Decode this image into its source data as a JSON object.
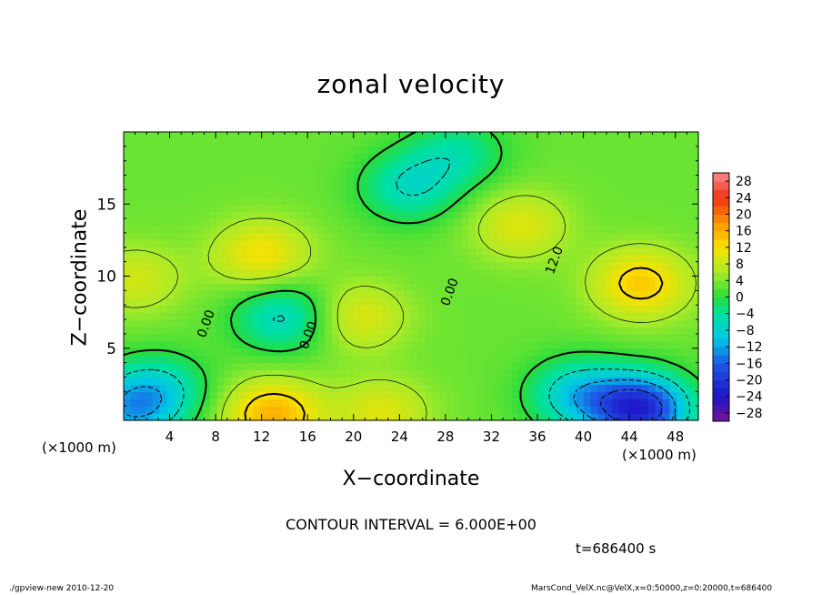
{
  "chart_data": {
    "type": "heatmap",
    "title": "zonal velocity",
    "xlabel": "X−coordinate",
    "ylabel": "Z−coordinate",
    "x_unit_left": "(×1000 m)",
    "x_unit_right": "(×1000 m)",
    "xlim": [
      0,
      50
    ],
    "ylim": [
      0,
      20
    ],
    "xticks": [
      4,
      8,
      12,
      16,
      20,
      24,
      28,
      32,
      36,
      40,
      44,
      48
    ],
    "yticks": [
      5,
      10,
      15
    ],
    "colorbar": {
      "ticks": [
        28,
        24,
        20,
        16,
        12,
        8,
        4,
        0,
        -4,
        -8,
        -12,
        -16,
        -20,
        -24,
        -28
      ],
      "tick_labels": [
        "28",
        "24",
        "20",
        "16",
        "12",
        "8",
        "4",
        "0",
        "−4",
        "−8",
        "−12",
        "−16",
        "−20",
        "−24",
        "−28"
      ],
      "range": [
        -30,
        30
      ]
    },
    "contour_labels": [
      {
        "text": "0.00",
        "x": 7.5,
        "y": 6.6
      },
      {
        "text": "0.00",
        "x": 16.4,
        "y": 5.8
      },
      {
        "text": "0.00",
        "x": 28.7,
        "y": 8.8
      },
      {
        "text": "12.0",
        "x": 37.8,
        "y": 11.0
      }
    ],
    "features": [
      {
        "kind": "max",
        "x": 45,
        "y": 9.5,
        "value": 14
      },
      {
        "kind": "max",
        "x": 12,
        "y": 11.5,
        "value": 12
      },
      {
        "kind": "max",
        "x": 34.5,
        "y": 13.5,
        "value": 10
      },
      {
        "kind": "max",
        "x": 20.5,
        "y": 7.2,
        "value": 10
      },
      {
        "kind": "max",
        "x": 1,
        "y": 9.8,
        "value": 9
      },
      {
        "kind": "max",
        "x": 13,
        "y": 0.4,
        "value": 16
      },
      {
        "kind": "max",
        "x": 22.5,
        "y": 0.5,
        "value": 10
      },
      {
        "kind": "min",
        "x": 45,
        "y": 0.8,
        "value": -22
      },
      {
        "kind": "min",
        "x": 39.5,
        "y": 1.8,
        "value": -9
      },
      {
        "kind": "min",
        "x": 13.8,
        "y": 7.2,
        "value": -7
      },
      {
        "kind": "min",
        "x": 24.8,
        "y": 16.2,
        "value": -6
      },
      {
        "kind": "min",
        "x": 29,
        "y": 18.5,
        "value": -4
      },
      {
        "kind": "min",
        "x": 3,
        "y": 2.2,
        "value": -6
      },
      {
        "kind": "min",
        "x": 0.5,
        "y": 0.7,
        "value": -9
      }
    ],
    "contour_interval": "CONTOUR INTERVAL = 6.000E+00",
    "time": "t=686400 s",
    "footer_left": "./gpview-new  2010-12-20",
    "footer_right": "MarsCond_VelX.nc@VelX,x=0:50000,z=0:20000,t=686400"
  }
}
